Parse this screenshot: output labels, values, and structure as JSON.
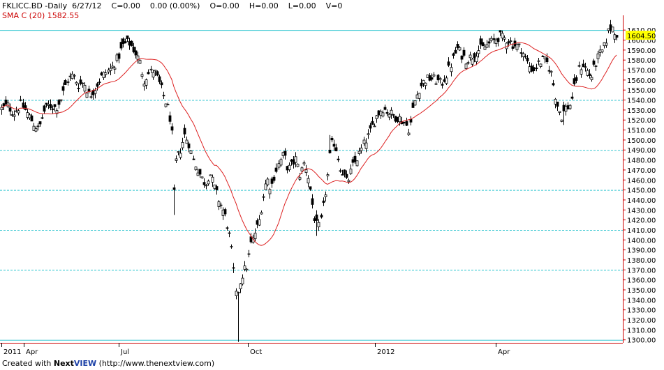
{
  "header": {
    "symbol": "FKLICC.BD",
    "interval": "-Daily",
    "date": "6/27/12",
    "change": "C=0.00",
    "change_pct": "0.00 (0.00%)",
    "open": "O=0.00",
    "high": "H=0.00",
    "low": "L=0.00",
    "volume": "V=0",
    "sma_label": "SMA C (20)",
    "sma_value": "1582.55"
  },
  "footer": {
    "created_with": "Created with ",
    "brand_next": "Next",
    "brand_view": "VIEW",
    "url": " (http://www.thenextview.com)"
  },
  "colors": {
    "candle": "#000000",
    "sma": "#dd2222",
    "grid": "#33c6d0",
    "axis_red": "#cc0000",
    "last_price_bg": "#ffff00"
  },
  "chart_data": {
    "type": "candlestick",
    "ylim": [
      1295,
      1620
    ],
    "yticks": [
      1300,
      1310,
      1320,
      1330,
      1340,
      1350,
      1360,
      1370,
      1380,
      1390,
      1400,
      1410,
      1420,
      1430,
      1440,
      1450,
      1460,
      1470,
      1480,
      1490,
      1500,
      1510,
      1520,
      1530,
      1540,
      1550,
      1560,
      1570,
      1580,
      1590,
      1600,
      1610
    ],
    "grid_levels": [
      1300,
      1370,
      1410,
      1450,
      1490,
      1540,
      1610
    ],
    "last_price": "1604.50",
    "x_labels": [
      "2011",
      "Apr",
      "Jul",
      "Oct",
      "2012",
      "Apr"
    ],
    "price_path": [
      [
        0,
        1530
      ],
      [
        10,
        1535
      ],
      [
        20,
        1527
      ],
      [
        30,
        1536
      ],
      [
        40,
        1525
      ],
      [
        48,
        1516
      ],
      [
        55,
        1510
      ],
      [
        62,
        1528
      ],
      [
        70,
        1535
      ],
      [
        80,
        1532
      ],
      [
        88,
        1542
      ],
      [
        96,
        1560
      ],
      [
        104,
        1565
      ],
      [
        112,
        1555
      ],
      [
        120,
        1558
      ],
      [
        128,
        1544
      ],
      [
        136,
        1552
      ],
      [
        144,
        1562
      ],
      [
        152,
        1568
      ],
      [
        160,
        1572
      ],
      [
        168,
        1582
      ],
      [
        176,
        1595
      ],
      [
        184,
        1598
      ],
      [
        192,
        1590
      ],
      [
        200,
        1578
      ],
      [
        206,
        1560
      ],
      [
        212,
        1566
      ],
      [
        220,
        1570
      ],
      [
        228,
        1556
      ],
      [
        236,
        1540
      ],
      [
        242,
        1528
      ],
      [
        246,
        1505
      ],
      [
        249,
        1445
      ],
      [
        252,
        1478
      ],
      [
        258,
        1490
      ],
      [
        264,
        1505
      ],
      [
        270,
        1498
      ],
      [
        276,
        1480
      ],
      [
        282,
        1472
      ],
      [
        288,
        1462
      ],
      [
        294,
        1456
      ],
      [
        300,
        1468
      ],
      [
        306,
        1454
      ],
      [
        312,
        1442
      ],
      [
        318,
        1432
      ],
      [
        324,
        1420
      ],
      [
        330,
        1398
      ],
      [
        334,
        1372
      ],
      [
        338,
        1340
      ],
      [
        342,
        1355
      ],
      [
        348,
        1368
      ],
      [
        354,
        1375
      ],
      [
        358,
        1395
      ],
      [
        362,
        1400
      ],
      [
        366,
        1410
      ],
      [
        370,
        1415
      ],
      [
        374,
        1432
      ],
      [
        378,
        1448
      ],
      [
        382,
        1462
      ],
      [
        388,
        1452
      ],
      [
        394,
        1468
      ],
      [
        400,
        1478
      ],
      [
        406,
        1486
      ],
      [
        412,
        1470
      ],
      [
        418,
        1476
      ],
      [
        424,
        1482
      ],
      [
        428,
        1464
      ],
      [
        432,
        1470
      ],
      [
        436,
        1478
      ],
      [
        440,
        1468
      ],
      [
        444,
        1452
      ],
      [
        448,
        1432
      ],
      [
        452,
        1416
      ],
      [
        456,
        1412
      ],
      [
        460,
        1420
      ],
      [
        464,
        1440
      ],
      [
        468,
        1460
      ],
      [
        472,
        1485
      ],
      [
        476,
        1500
      ],
      [
        480,
        1494
      ],
      [
        484,
        1482
      ],
      [
        488,
        1470
      ],
      [
        492,
        1466
      ],
      [
        496,
        1458
      ],
      [
        500,
        1462
      ],
      [
        504,
        1472
      ],
      [
        510,
        1480
      ],
      [
        516,
        1488
      ],
      [
        522,
        1498
      ],
      [
        528,
        1505
      ],
      [
        534,
        1516
      ],
      [
        540,
        1526
      ],
      [
        548,
        1532
      ],
      [
        556,
        1528
      ],
      [
        564,
        1524
      ],
      [
        572,
        1522
      ],
      [
        580,
        1516
      ],
      [
        586,
        1510
      ],
      [
        590,
        1528
      ],
      [
        594,
        1540
      ],
      [
        600,
        1552
      ],
      [
        608,
        1560
      ],
      [
        616,
        1562
      ],
      [
        624,
        1560
      ],
      [
        632,
        1556
      ],
      [
        640,
        1566
      ],
      [
        648,
        1580
      ],
      [
        654,
        1592
      ],
      [
        660,
        1586
      ],
      [
        668,
        1580
      ],
      [
        676,
        1584
      ],
      [
        684,
        1590
      ],
      [
        692,
        1592
      ],
      [
        700,
        1596
      ],
      [
        708,
        1600
      ],
      [
        714,
        1604
      ],
      [
        720,
        1602
      ],
      [
        728,
        1600
      ],
      [
        734,
        1596
      ],
      [
        740,
        1594
      ],
      [
        746,
        1592
      ],
      [
        752,
        1582
      ],
      [
        758,
        1574
      ],
      [
        764,
        1570
      ],
      [
        770,
        1576
      ],
      [
        776,
        1580
      ],
      [
        782,
        1578
      ],
      [
        788,
        1570
      ],
      [
        794,
        1548
      ],
      [
        798,
        1535
      ],
      [
        804,
        1524
      ],
      [
        810,
        1532
      ],
      [
        816,
        1534
      ],
      [
        822,
        1550
      ],
      [
        828,
        1570
      ],
      [
        834,
        1576
      ],
      [
        840,
        1570
      ],
      [
        846,
        1562
      ],
      [
        852,
        1576
      ],
      [
        858,
        1585
      ],
      [
        864,
        1590
      ],
      [
        868,
        1600
      ],
      [
        872,
        1610
      ],
      [
        876,
        1614
      ],
      [
        880,
        1610
      ],
      [
        884,
        1606
      ],
      [
        886,
        1604.5
      ]
    ],
    "spikes": [
      {
        "x": 340,
        "low": 1298
      },
      {
        "x": 249,
        "low": 1425
      },
      {
        "x": 454,
        "low": 1404
      },
      {
        "x": 472,
        "high": 1505
      },
      {
        "x": 806,
        "low": 1515
      }
    ],
    "sma_period": 20,
    "sma_last": 1582.55
  }
}
